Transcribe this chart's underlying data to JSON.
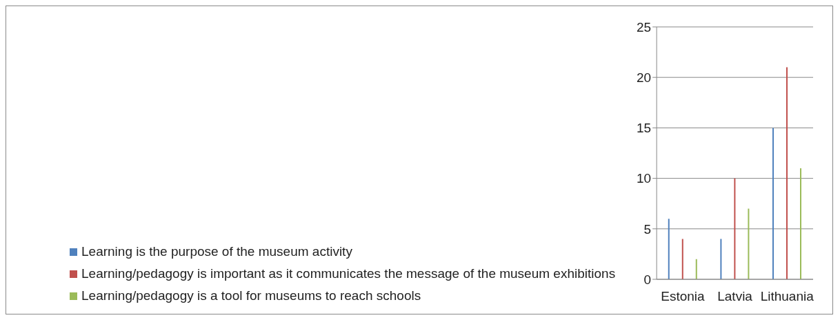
{
  "chart_data": {
    "type": "bar",
    "categories": [
      "Estonia",
      "Latvia",
      "Lithuania"
    ],
    "series": [
      {
        "name": "Learning is the purpose of the museum activity",
        "color": "#4f81bd",
        "values": [
          6,
          4,
          15
        ]
      },
      {
        "name": "Learning/pedagogy is important as it communicates the message of the museum exhibitions",
        "color": "#c0504d",
        "values": [
          4,
          10,
          21
        ]
      },
      {
        "name": "Learning/pedagogy is a tool for museums to reach schools",
        "color": "#9bbb59",
        "values": [
          2,
          7,
          11
        ]
      }
    ],
    "ylim": [
      0,
      25
    ],
    "yticks": [
      0,
      5,
      10,
      15,
      20,
      25
    ],
    "grid": "y",
    "legend": "bottom"
  }
}
